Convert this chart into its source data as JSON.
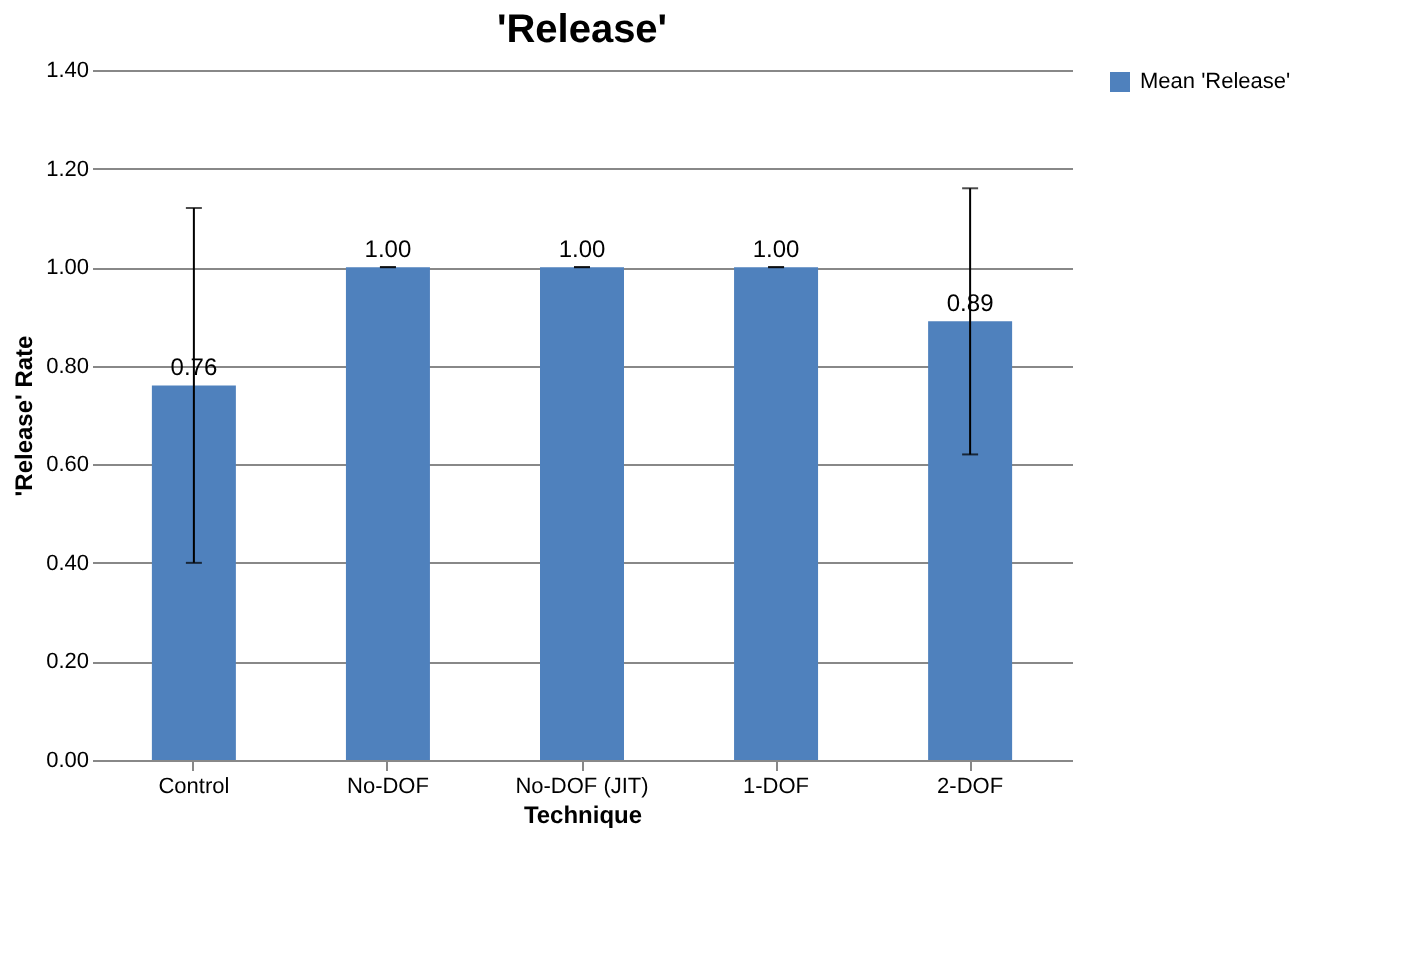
{
  "chart_data": {
    "type": "bar",
    "title": "'Release'",
    "xlabel": "Technique",
    "ylabel": "'Release' Rate",
    "categories": [
      "Control",
      "No-DOF",
      "No-DOF (JIT)",
      "1-DOF",
      "2-DOF"
    ],
    "series": [
      {
        "name": "Mean 'Release'",
        "color": "#4f81bd",
        "values": [
          0.76,
          1.0,
          1.0,
          1.0,
          0.89
        ],
        "errors": [
          0.36,
          0,
          0,
          0,
          0.27
        ],
        "value_labels": [
          "0.76",
          "1.00",
          "1.00",
          "1.00",
          "0.89"
        ]
      }
    ],
    "ylim": [
      0,
      1.4
    ],
    "yticks": [
      {
        "value": 0,
        "label": "0.00"
      },
      {
        "value": 0.2,
        "label": "0.20"
      },
      {
        "value": 0.4,
        "label": "0.40"
      },
      {
        "value": 0.6,
        "label": "0.60"
      },
      {
        "value": 0.8,
        "label": "0.80"
      },
      {
        "value": 1.0,
        "label": "1.00"
      },
      {
        "value": 1.2,
        "label": "1.20"
      },
      {
        "value": 1.4,
        "label": "1.40"
      }
    ],
    "grid": "y",
    "legend": "right"
  }
}
